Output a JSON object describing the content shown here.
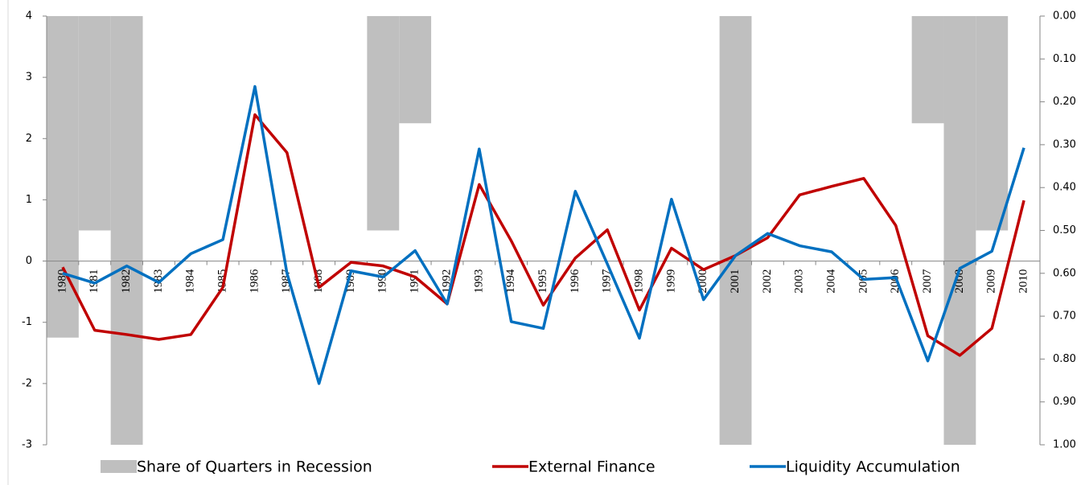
{
  "chart_data": {
    "type": "combo",
    "categories": [
      "1980",
      "1981",
      "1982",
      "1983",
      "1984",
      "1985",
      "1986",
      "1987",
      "1988",
      "1989",
      "1990",
      "1991",
      "1992",
      "1993",
      "1994",
      "1995",
      "1996",
      "1997",
      "1998",
      "1999",
      "2000",
      "2001",
      "2002",
      "2003",
      "2004",
      "2005",
      "2006",
      "2007",
      "2008",
      "2009",
      "2010"
    ],
    "series": [
      {
        "name": "Share of Quarters in Recession",
        "type": "bar",
        "axis": "y2",
        "color": "#bfbfbf",
        "values": [
          0.75,
          0.5,
          1,
          0,
          0,
          0,
          0,
          0,
          0,
          0,
          0.5,
          0.25,
          0,
          0,
          0,
          0,
          0,
          0,
          0,
          0,
          0,
          1,
          0,
          0,
          0,
          0,
          0,
          0.25,
          1,
          0.5,
          0
        ]
      },
      {
        "name": "External Finance",
        "type": "line",
        "color": "#c00000",
        "values": [
          -0.1,
          -1.13,
          -1.2,
          -1.28,
          -1.2,
          -0.43,
          2.39,
          1.77,
          -0.43,
          -0.02,
          -0.08,
          -0.26,
          -0.7,
          1.25,
          0.33,
          -0.72,
          0.05,
          0.51,
          -0.8,
          0.21,
          -0.14,
          0.09,
          0.38,
          1.08,
          1.22,
          1.35,
          0.58,
          -1.22,
          -1.54,
          -1.1,
          0.99
        ]
      },
      {
        "name": "Liquidity Accumulation",
        "type": "line",
        "color": "#0070c0",
        "values": [
          -0.2,
          -0.36,
          -0.08,
          -0.35,
          0.12,
          0.35,
          2.85,
          -0.2,
          -2.0,
          -0.16,
          -0.26,
          0.17,
          -0.7,
          1.83,
          -0.99,
          -1.1,
          1.14,
          -0.05,
          -1.26,
          1.01,
          -0.63,
          0.09,
          0.45,
          0.25,
          0.15,
          -0.3,
          -0.27,
          -1.63,
          -0.12,
          0.16,
          1.85
        ]
      }
    ],
    "ylim": [
      -3,
      4
    ],
    "yticks": [
      -3,
      -2,
      -1,
      0,
      1,
      2,
      3,
      4
    ],
    "y2lim": [
      0,
      1
    ],
    "y2_inverted": true,
    "y2ticks": [
      {
        "value": 0,
        "label": "0.00"
      },
      {
        "value": 0.1,
        "label": "0.10"
      },
      {
        "value": 0.2,
        "label": "0.20"
      },
      {
        "value": 0.3,
        "label": "0.30"
      },
      {
        "value": 0.4,
        "label": "0.40"
      },
      {
        "value": 0.5,
        "label": "0.50"
      },
      {
        "value": 0.6,
        "label": "0.60"
      },
      {
        "value": 0.7,
        "label": "0.70"
      },
      {
        "value": 0.8,
        "label": "0.80"
      },
      {
        "value": 0.9,
        "label": "0.90"
      },
      {
        "value": 1,
        "label": "1.00"
      }
    ],
    "legend": "bottom"
  }
}
